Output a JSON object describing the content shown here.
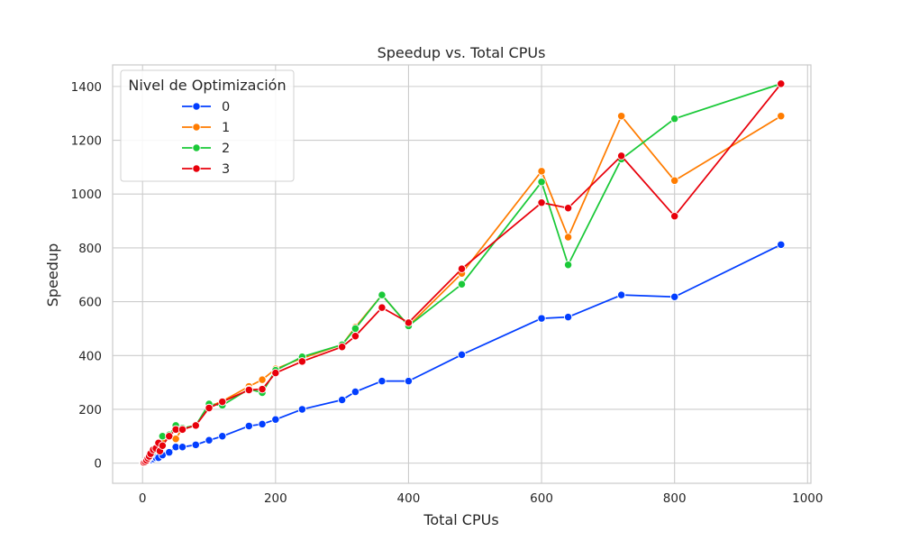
{
  "chart_data": {
    "type": "line",
    "title": "Speedup vs. Total CPUs",
    "xlabel": "Total CPUs",
    "ylabel": "Speedup",
    "xlim": [
      -45,
      1005
    ],
    "ylim": [
      -75,
      1480
    ],
    "xticks": [
      0,
      200,
      400,
      600,
      800,
      1000
    ],
    "yticks": [
      0,
      200,
      400,
      600,
      800,
      1000,
      1200,
      1400
    ],
    "grid": true,
    "legend": {
      "title": "Nivel de Optimización",
      "placement": "top-left"
    },
    "series": [
      {
        "name": "0",
        "color": "#023eff",
        "points": [
          [
            1,
            1
          ],
          [
            2,
            2
          ],
          [
            4,
            4
          ],
          [
            6,
            6
          ],
          [
            8,
            8
          ],
          [
            10,
            10
          ],
          [
            12,
            12
          ],
          [
            16,
            16
          ],
          [
            20,
            20
          ],
          [
            24,
            20
          ],
          [
            30,
            30
          ],
          [
            40,
            40
          ],
          [
            50,
            60
          ],
          [
            60,
            60
          ],
          [
            80,
            68
          ],
          [
            100,
            85
          ],
          [
            120,
            100
          ],
          [
            160,
            138
          ],
          [
            180,
            145
          ],
          [
            200,
            162
          ],
          [
            240,
            200
          ],
          [
            300,
            235
          ],
          [
            320,
            265
          ],
          [
            360,
            305
          ],
          [
            400,
            305
          ],
          [
            480,
            403
          ],
          [
            600,
            538
          ],
          [
            640,
            543
          ],
          [
            720,
            625
          ],
          [
            800,
            618
          ],
          [
            960,
            812
          ]
        ]
      },
      {
        "name": "1",
        "color": "#ff7c00",
        "points": [
          [
            1,
            1
          ],
          [
            2,
            2
          ],
          [
            4,
            4
          ],
          [
            6,
            8
          ],
          [
            8,
            15
          ],
          [
            10,
            20
          ],
          [
            12,
            30
          ],
          [
            16,
            45
          ],
          [
            20,
            55
          ],
          [
            24,
            55
          ],
          [
            30,
            90
          ],
          [
            40,
            100
          ],
          [
            50,
            90
          ],
          [
            60,
            130
          ],
          [
            80,
            140
          ],
          [
            100,
            210
          ],
          [
            120,
            230
          ],
          [
            160,
            285
          ],
          [
            180,
            310
          ],
          [
            200,
            350
          ],
          [
            240,
            390
          ],
          [
            300,
            440
          ],
          [
            320,
            505
          ],
          [
            360,
            625
          ],
          [
            400,
            510
          ],
          [
            480,
            705
          ],
          [
            600,
            1085
          ],
          [
            640,
            840
          ],
          [
            720,
            1290
          ],
          [
            800,
            1050
          ],
          [
            960,
            1290
          ]
        ]
      },
      {
        "name": "2",
        "color": "#1ac938",
        "points": [
          [
            1,
            1
          ],
          [
            2,
            2
          ],
          [
            4,
            4
          ],
          [
            6,
            8
          ],
          [
            8,
            15
          ],
          [
            10,
            20
          ],
          [
            12,
            30
          ],
          [
            16,
            45
          ],
          [
            20,
            55
          ],
          [
            24,
            55
          ],
          [
            30,
            100
          ],
          [
            40,
            105
          ],
          [
            50,
            140
          ],
          [
            60,
            130
          ],
          [
            80,
            140
          ],
          [
            100,
            220
          ],
          [
            120,
            215
          ],
          [
            160,
            275
          ],
          [
            180,
            262
          ],
          [
            200,
            345
          ],
          [
            240,
            395
          ],
          [
            300,
            440
          ],
          [
            320,
            500
          ],
          [
            360,
            625
          ],
          [
            400,
            510
          ],
          [
            480,
            665
          ],
          [
            600,
            1045
          ],
          [
            640,
            737
          ],
          [
            720,
            1130
          ],
          [
            800,
            1280
          ],
          [
            960,
            1410
          ]
        ]
      },
      {
        "name": "3",
        "color": "#e8000b",
        "points": [
          [
            1,
            1
          ],
          [
            2,
            2
          ],
          [
            4,
            5
          ],
          [
            6,
            10
          ],
          [
            8,
            18
          ],
          [
            10,
            25
          ],
          [
            12,
            35
          ],
          [
            16,
            50
          ],
          [
            20,
            55
          ],
          [
            24,
            75
          ],
          [
            26,
            45
          ],
          [
            30,
            65
          ],
          [
            40,
            100
          ],
          [
            50,
            125
          ],
          [
            60,
            125
          ],
          [
            80,
            140
          ],
          [
            100,
            205
          ],
          [
            120,
            228
          ],
          [
            160,
            272
          ],
          [
            180,
            275
          ],
          [
            200,
            335
          ],
          [
            240,
            378
          ],
          [
            300,
            432
          ],
          [
            320,
            472
          ],
          [
            360,
            578
          ],
          [
            400,
            522
          ],
          [
            480,
            722
          ],
          [
            600,
            968
          ],
          [
            640,
            948
          ],
          [
            720,
            1142
          ],
          [
            800,
            918
          ],
          [
            960,
            1410
          ]
        ]
      }
    ]
  }
}
